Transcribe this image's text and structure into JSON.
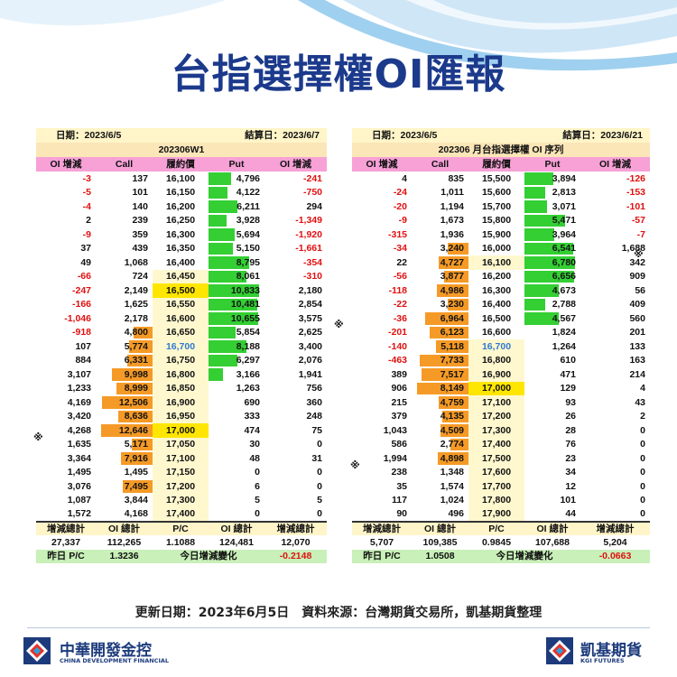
{
  "title": "台指選擇權OI匯報",
  "left": {
    "date_label": "日期：2023/6/5",
    "settle_label": "結算日：2023/6/7",
    "series": "202306W1",
    "headers": [
      "OI 增減",
      "Call",
      "履約價",
      "Put",
      "OI 增減"
    ],
    "rows": [
      [
        "-3",
        "137",
        "16,100",
        "4,796",
        "-241"
      ],
      [
        "-5",
        "101",
        "16,150",
        "4,122",
        "-750"
      ],
      [
        "-4",
        "140",
        "16,200",
        "6,211",
        "294"
      ],
      [
        "2",
        "239",
        "16,250",
        "3,928",
        "-1,349"
      ],
      [
        "-9",
        "359",
        "16,300",
        "5,694",
        "-1,920"
      ],
      [
        "37",
        "439",
        "16,350",
        "5,150",
        "-1,661"
      ],
      [
        "49",
        "1,068",
        "16,400",
        "8,795",
        "-354"
      ],
      [
        "-66",
        "724",
        "16,450",
        "8,061",
        "-310"
      ],
      [
        "-247",
        "2,149",
        "16,500",
        "10,833",
        "2,180"
      ],
      [
        "-166",
        "1,625",
        "16,550",
        "10,481",
        "2,854"
      ],
      [
        "-1,046",
        "2,178",
        "16,600",
        "10,655",
        "3,575"
      ],
      [
        "-918",
        "4,800",
        "16,650",
        "5,854",
        "2,625"
      ],
      [
        "107",
        "5,774",
        "16,700",
        "8,188",
        "3,400"
      ],
      [
        "884",
        "6,331",
        "16,750",
        "6,297",
        "2,076"
      ],
      [
        "3,107",
        "9,998",
        "16,800",
        "3,166",
        "1,941"
      ],
      [
        "1,233",
        "8,999",
        "16,850",
        "1,263",
        "756"
      ],
      [
        "4,169",
        "12,506",
        "16,900",
        "690",
        "360"
      ],
      [
        "3,420",
        "8,636",
        "16,950",
        "333",
        "248"
      ],
      [
        "4,268",
        "12,646",
        "17,000",
        "474",
        "75"
      ],
      [
        "1,635",
        "5,171",
        "17,050",
        "30",
        "0"
      ],
      [
        "3,364",
        "7,916",
        "17,100",
        "48",
        "31"
      ],
      [
        "1,495",
        "1,495",
        "17,150",
        "0",
        "0"
      ],
      [
        "3,076",
        "7,495",
        "17,200",
        "6",
        "0"
      ],
      [
        "1,087",
        "3,844",
        "17,300",
        "5",
        "5"
      ],
      [
        "1,572",
        "4,168",
        "17,400",
        "0",
        "0"
      ]
    ],
    "sum_headers": [
      "增減總計",
      "OI 總計",
      "P/C",
      "OI 總計",
      "增減總計"
    ],
    "sums": [
      "27,337",
      "112,265",
      "1.1088",
      "124,481",
      "12,070"
    ],
    "prev_pc_label": "昨日 P/C",
    "prev_pc": "1.3236",
    "today_change_label": "今日增減變化",
    "today_change": "-0.2148",
    "mark_row": 18,
    "mark_text": "※"
  },
  "right": {
    "date_label": "日期：2023/6/5",
    "settle_label": "結算日：2023/6/21",
    "series": "202306 月台指選擇權 OI 序列",
    "headers": [
      "OI 增減",
      "Call",
      "履約價",
      "Put",
      "OI 增減"
    ],
    "rows": [
      [
        "4",
        "835",
        "15,500",
        "3,894",
        "-126"
      ],
      [
        "-24",
        "1,011",
        "15,600",
        "2,813",
        "-153"
      ],
      [
        "-20",
        "1,194",
        "15,700",
        "3,071",
        "-101"
      ],
      [
        "-9",
        "1,673",
        "15,800",
        "5,471",
        "-57"
      ],
      [
        "-315",
        "1,936",
        "15,900",
        "3,964",
        "-7"
      ],
      [
        "-34",
        "3,240",
        "16,000",
        "6,541",
        "1,688"
      ],
      [
        "22",
        "4,727",
        "16,100",
        "6,780",
        "342"
      ],
      [
        "-56",
        "3,877",
        "16,200",
        "6,656",
        "909"
      ],
      [
        "-118",
        "4,986",
        "16,300",
        "4,673",
        "56"
      ],
      [
        "-22",
        "3,230",
        "16,400",
        "2,788",
        "409"
      ],
      [
        "-36",
        "6,964",
        "16,500",
        "4,567",
        "560"
      ],
      [
        "-201",
        "6,123",
        "16,600",
        "1,824",
        "201"
      ],
      [
        "-140",
        "5,118",
        "16,700",
        "1,264",
        "133"
      ],
      [
        "-463",
        "7,733",
        "16,800",
        "610",
        "163"
      ],
      [
        "389",
        "7,517",
        "16,900",
        "471",
        "214"
      ],
      [
        "906",
        "8,149",
        "17,000",
        "129",
        "4"
      ],
      [
        "215",
        "4,759",
        "17,100",
        "93",
        "43"
      ],
      [
        "379",
        "4,135",
        "17,200",
        "26",
        "2"
      ],
      [
        "1,043",
        "4,509",
        "17,300",
        "28",
        "0"
      ],
      [
        "586",
        "2,774",
        "17,400",
        "76",
        "0"
      ],
      [
        "1,994",
        "4,898",
        "17,500",
        "23",
        "0"
      ],
      [
        "238",
        "1,348",
        "17,600",
        "34",
        "0"
      ],
      [
        "35",
        "1,574",
        "17,700",
        "12",
        "0"
      ],
      [
        "117",
        "1,024",
        "17,800",
        "101",
        "0"
      ],
      [
        "90",
        "496",
        "17,900",
        "44",
        "0"
      ]
    ],
    "sum_headers": [
      "增減總計",
      "OI 總計",
      "P/C",
      "OI 總計",
      "增減總計"
    ],
    "sums": [
      "5,707",
      "109,385",
      "0.9845",
      "107,688",
      "5,204"
    ],
    "prev_pc_label": "昨日 P/C",
    "prev_pc": "1.0508",
    "today_change_label": "今日增減變化",
    "today_change": "-0.0663",
    "mark_text": "※"
  },
  "footer": {
    "update_text": "更新日期：2023年6月5日　資料來源：台灣期貨交易所，凱基期貨整理",
    "cdf_name": "中華開發金控",
    "cdf_en": "CHINA DEVELOPMENT FINANCIAL",
    "kgi_name": "凱基期貨",
    "kgi_en": "KGI FUTURES"
  },
  "colors": {
    "title": "#1c3a8c",
    "call_bar": "#f59a26",
    "put_bar": "#33cf33",
    "header_pink": "#f7a1d7",
    "atm_yellow": "#ffe600",
    "negative": "#e01010",
    "settle_blue": "#2f79d0"
  }
}
